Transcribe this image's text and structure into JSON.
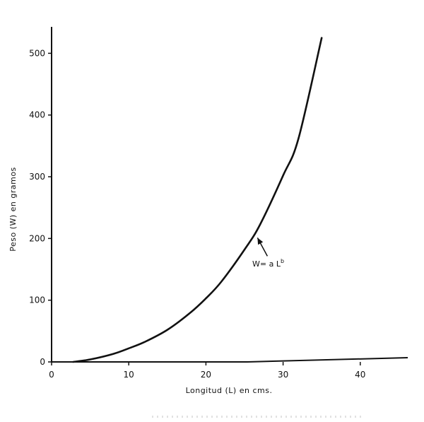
{
  "chart_data": {
    "type": "line",
    "xlabel": "Longitud (L) en cms.",
    "ylabel": "Peso (W) en gramos",
    "xlim": [
      0,
      46
    ],
    "ylim": [
      0,
      540
    ],
    "xticks": [
      0,
      10,
      20,
      30,
      40
    ],
    "yticks": [
      0,
      100,
      200,
      300,
      400,
      500
    ],
    "grid": false,
    "legend": "none",
    "series": [
      {
        "x": [
          2.8,
          5,
          8,
          10,
          12,
          15,
          18,
          20,
          22,
          25,
          27,
          30,
          32,
          35
        ],
        "y": [
          0,
          4,
          13,
          22,
          32,
          52,
          80,
          103,
          130,
          182,
          222,
          302,
          362,
          525
        ]
      }
    ],
    "annotation": {
      "text": "W= a L",
      "superscript": "b",
      "points_to": {
        "x": 26.5,
        "y": 208
      }
    },
    "colors": {
      "line": "#111111",
      "axis": "#111111"
    }
  }
}
